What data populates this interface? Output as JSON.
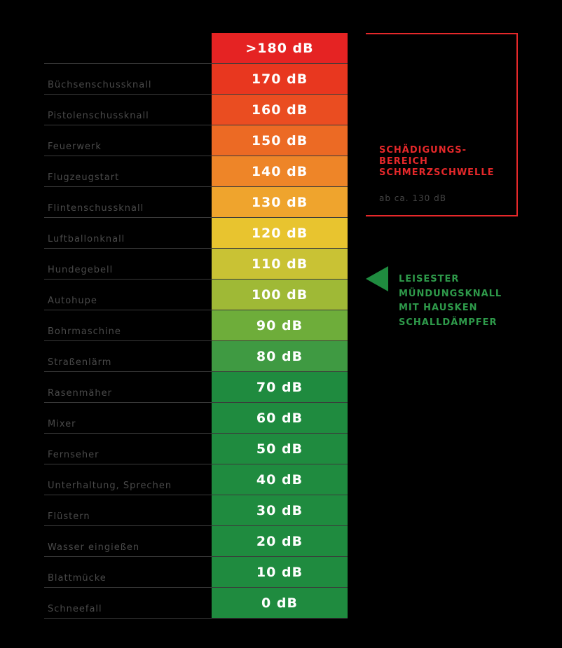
{
  "chart_data": {
    "type": "table",
    "rows": [
      {
        "level": ">180 dB",
        "source": "",
        "color": "#e52323"
      },
      {
        "level": "170 dB",
        "source": "Büchsenschussknall",
        "color": "#e8371f"
      },
      {
        "level": "160 dB",
        "source": "Pistolenschussknall",
        "color": "#ea4d21"
      },
      {
        "level": "150 dB",
        "source": "Feuerwerk",
        "color": "#ec6a24"
      },
      {
        "level": "140 dB",
        "source": "Flugzeugstart",
        "color": "#ee8528"
      },
      {
        "level": "130 dB",
        "source": "Flintenschussknall",
        "color": "#efa42d"
      },
      {
        "level": "120 dB",
        "source": "Luftballonknall",
        "color": "#e8c42f"
      },
      {
        "level": "110 dB",
        "source": "Hundegebell",
        "color": "#c9c234"
      },
      {
        "level": "100 dB",
        "source": "Autohupe",
        "color": "#9fb936"
      },
      {
        "level": "90 dB",
        "source": "Bohrmaschine",
        "color": "#6ead3a"
      },
      {
        "level": "80 dB",
        "source": "Straßenlärm",
        "color": "#3f9a42"
      },
      {
        "level": "70 dB",
        "source": "Rasenmäher",
        "color": "#1f8b3f"
      },
      {
        "level": "60 dB",
        "source": "Mixer",
        "color": "#1f8b3f"
      },
      {
        "level": "50 dB",
        "source": "Fernseher",
        "color": "#1f8b3f"
      },
      {
        "level": "40 dB",
        "source": "Unterhaltung, Sprechen",
        "color": "#1f8b3f"
      },
      {
        "level": "30 dB",
        "source": "Flüstern",
        "color": "#1f8b3f"
      },
      {
        "level": "20 dB",
        "source": "Wasser eingießen",
        "color": "#1f8b3f"
      },
      {
        "level": "10 dB",
        "source": "Blattmücke",
        "color": "#1f8b3f"
      },
      {
        "level": "0 dB",
        "source": "Schneefall",
        "color": "#1f8b3f"
      }
    ]
  },
  "damage_zone": {
    "title_lines": [
      "SCHÄDIGUNGS-",
      "BEREICH",
      "SCHMERZSCHWELLE"
    ],
    "subtitle": "ab ca. 130 dB",
    "color": "#e5282a"
  },
  "quietest_note": {
    "lines": [
      "LEISESTER",
      "MÜNDUNGSKNALL",
      "MIT HAUSKEN",
      "SCHALLDÄMPFER"
    ],
    "color": "#2e9a4a",
    "arrow_icon": "left-triangle-icon"
  }
}
